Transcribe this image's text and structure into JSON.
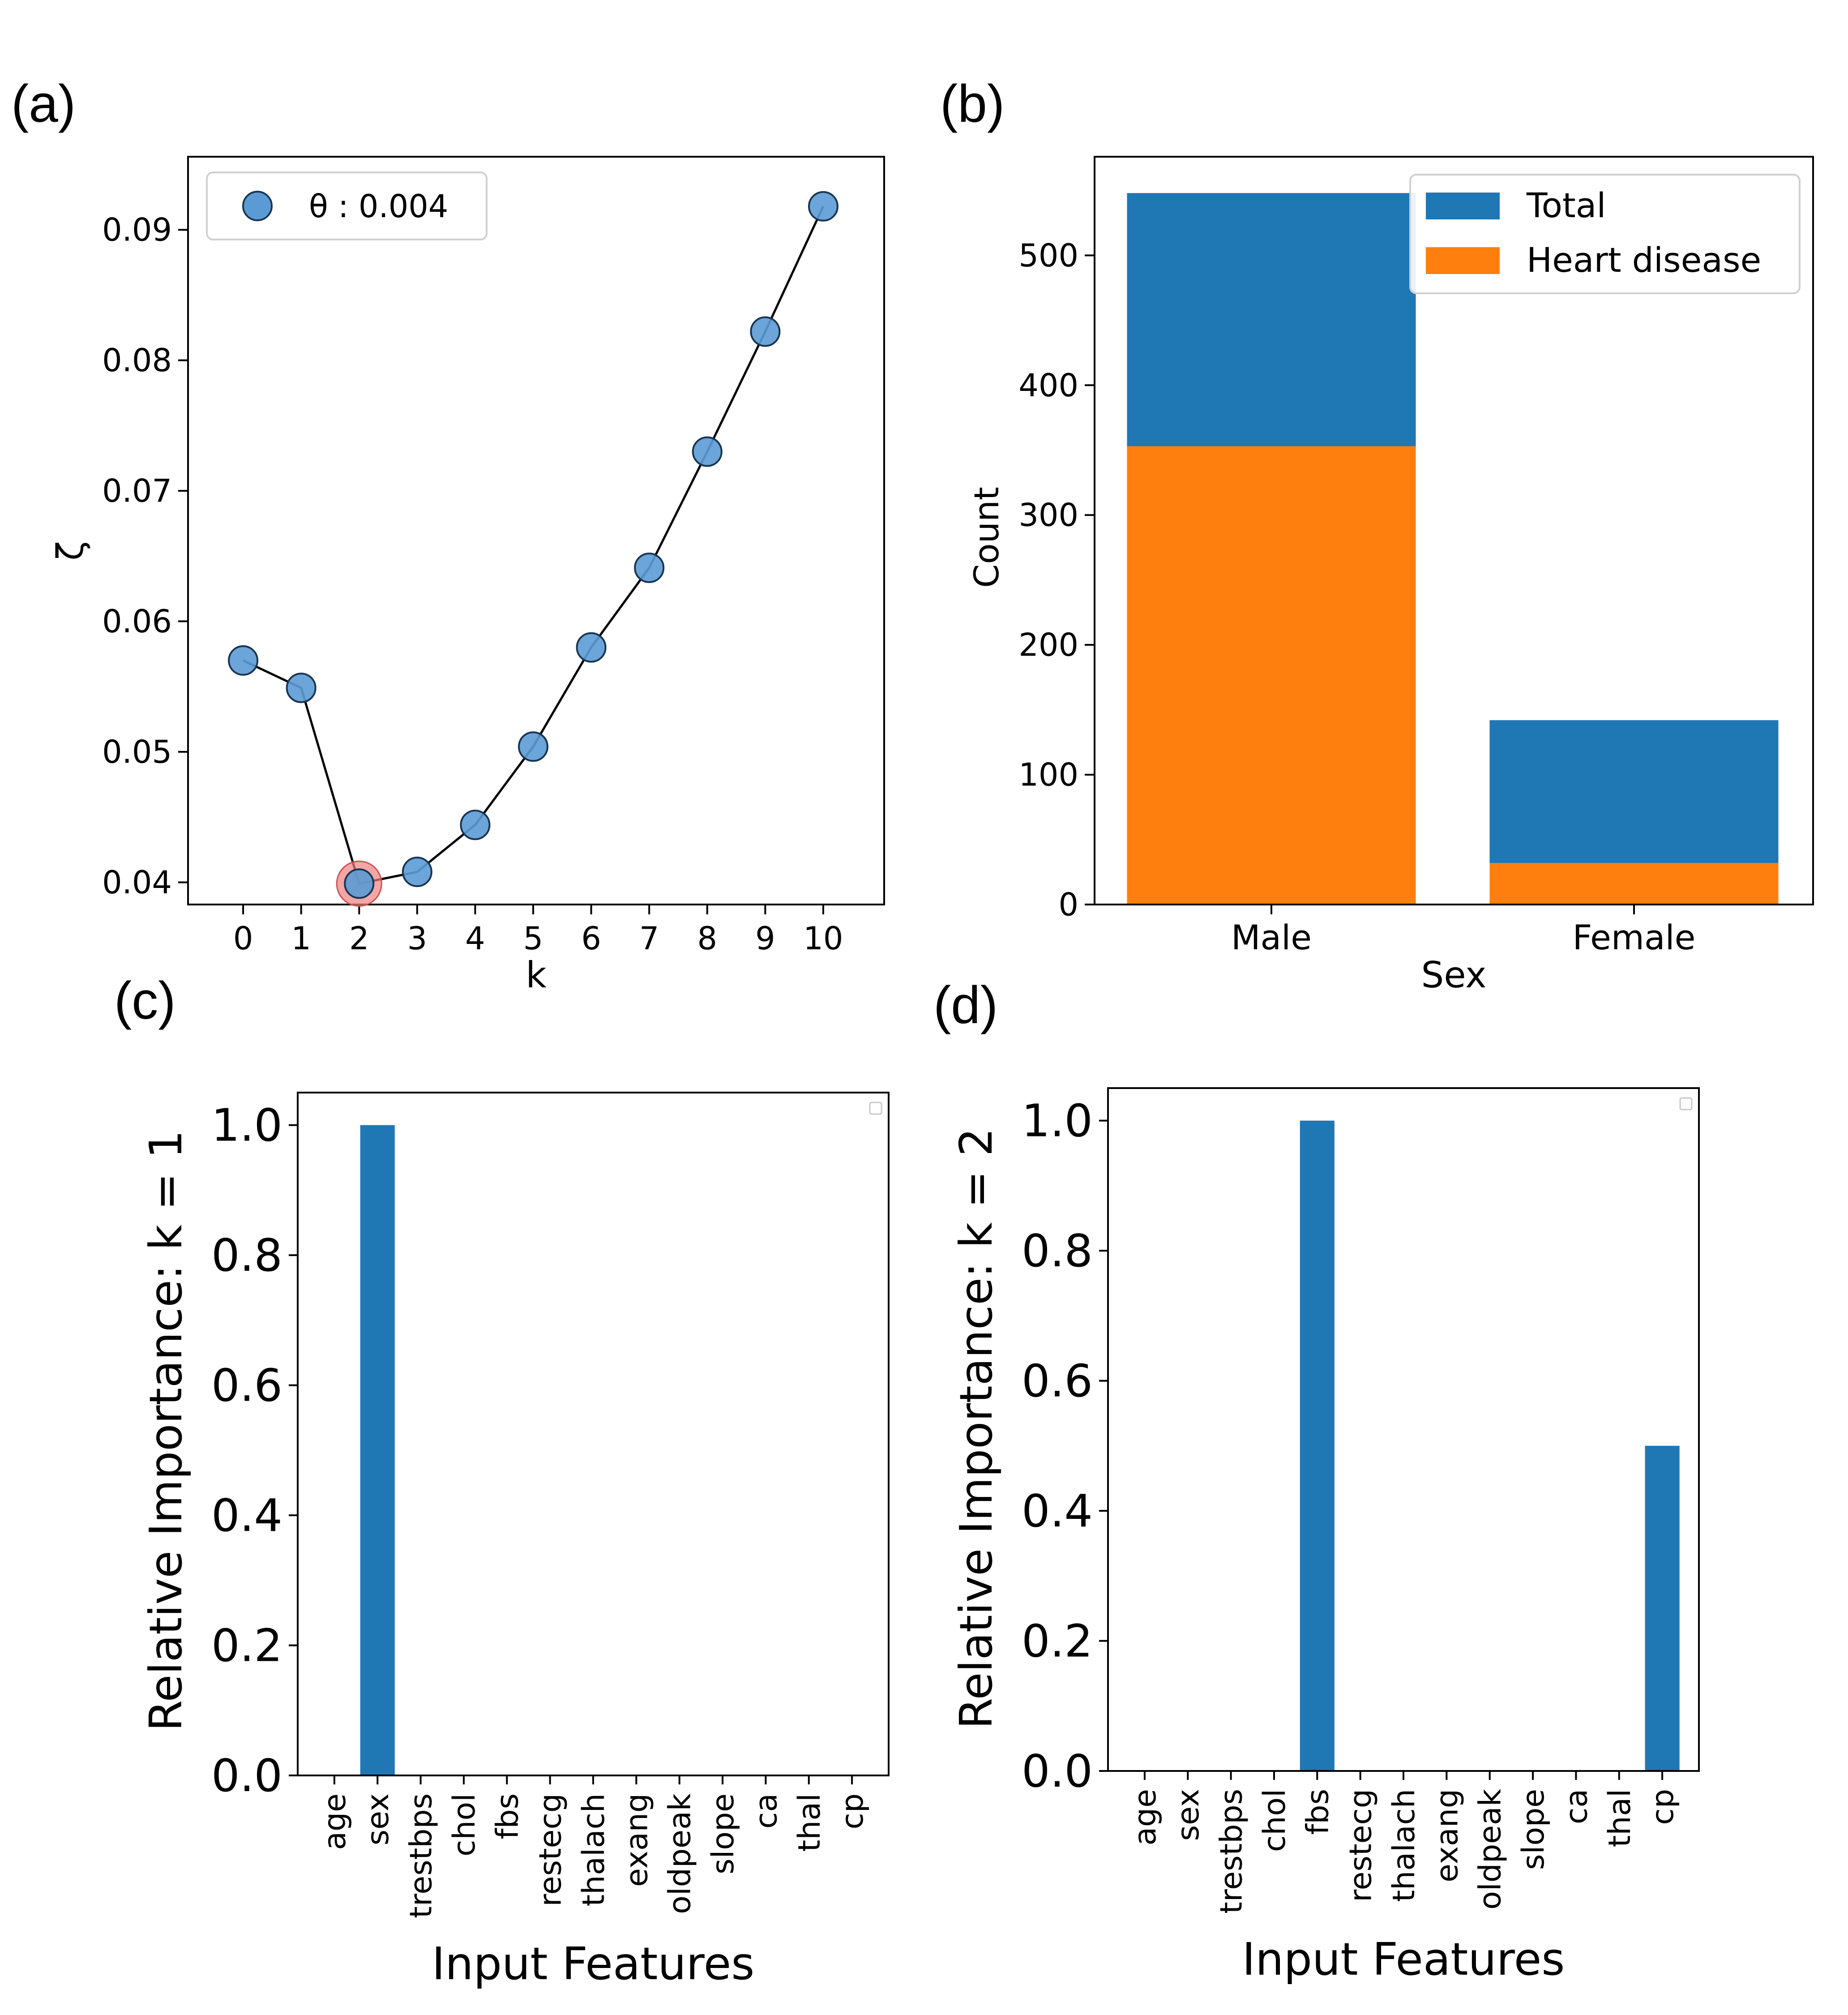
{
  "panel_labels": [
    "(a)",
    "(b)",
    "(c)",
    "(d)"
  ],
  "colors": {
    "blue": "#1f77b4",
    "orange": "#ff7f0e",
    "marker": "#5b9bd5",
    "highlight": "#f08080"
  },
  "chart_data": [
    {
      "type": "line",
      "panel": "(a)",
      "title": "",
      "xlabel": "k",
      "ylabel": "ζ",
      "x": [
        0,
        1,
        2,
        3,
        4,
        5,
        6,
        7,
        8,
        9,
        10
      ],
      "series": [
        {
          "name": "θ : 0.004",
          "values": [
            0.057,
            0.0549,
            0.0399,
            0.0408,
            0.0444,
            0.0504,
            0.058,
            0.0641,
            0.073,
            0.0822,
            0.0918
          ]
        }
      ],
      "highlight_k": 2,
      "xticks": [
        "0",
        "1",
        "2",
        "3",
        "4",
        "5",
        "6",
        "7",
        "8",
        "9",
        "10"
      ],
      "yticks": [
        "0.04",
        "0.05",
        "0.06",
        "0.07",
        "0.08",
        "0.09"
      ],
      "xlim": [
        -0.95,
        11.05
      ],
      "ylim": [
        0.0383,
        0.0956
      ],
      "legend": "top-left",
      "grid": false
    },
    {
      "type": "bar",
      "panel": "(b)",
      "title": "",
      "xlabel": "Sex",
      "ylabel": "Count",
      "categories": [
        "Male",
        "Female"
      ],
      "series": [
        {
          "name": "Total",
          "values": [
            548,
            142
          ]
        },
        {
          "name": "Heart disease",
          "values": [
            353,
            32
          ]
        }
      ],
      "yticks": [
        "0",
        "100",
        "200",
        "300",
        "400",
        "500"
      ],
      "ylim": [
        0,
        576
      ],
      "legend": "top-right",
      "grid": false
    },
    {
      "type": "bar",
      "panel": "(c)",
      "title": "",
      "xlabel": "Input Features",
      "ylabel": "Relative Importance: k = 1",
      "categories": [
        "age",
        "sex",
        "trestbps",
        "chol",
        "fbs",
        "restecg",
        "thalach",
        "exang",
        "oldpeak",
        "slope",
        "ca",
        "thal",
        "cp"
      ],
      "values": [
        0,
        1.0,
        0,
        0,
        0,
        0,
        0,
        0,
        0,
        0,
        0,
        0,
        0
      ],
      "yticks": [
        "0.0",
        "0.2",
        "0.4",
        "0.6",
        "0.8",
        "1.0"
      ],
      "ylim": [
        0,
        1.05
      ],
      "grid": false
    },
    {
      "type": "bar",
      "panel": "(d)",
      "title": "",
      "xlabel": "Input Features",
      "ylabel": "Relative Importance: k = 2",
      "categories": [
        "age",
        "sex",
        "trestbps",
        "chol",
        "fbs",
        "restecg",
        "thalach",
        "exang",
        "oldpeak",
        "slope",
        "ca",
        "thal",
        "cp"
      ],
      "values": [
        0,
        0,
        0,
        0,
        1.0,
        0,
        0,
        0,
        0,
        0,
        0,
        0,
        0.5
      ],
      "yticks": [
        "0.0",
        "0.2",
        "0.4",
        "0.6",
        "0.8",
        "1.0"
      ],
      "ylim": [
        0,
        1.05
      ],
      "grid": false
    }
  ]
}
